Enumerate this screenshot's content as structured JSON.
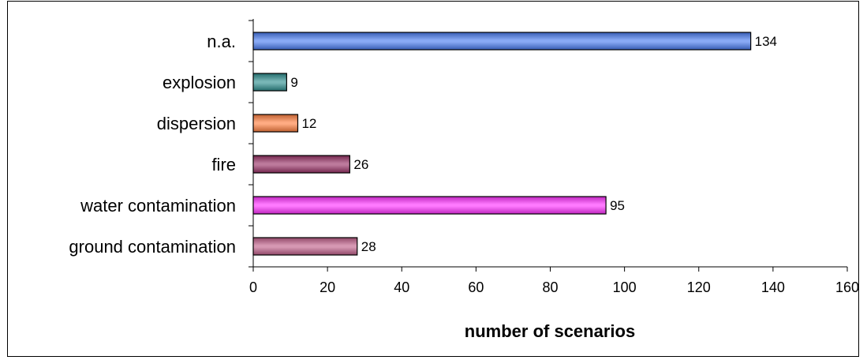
{
  "chart_data": {
    "type": "bar",
    "orientation": "horizontal",
    "categories": [
      "ground contamination",
      "water contamination",
      "fire",
      "dispersion",
      "explosion",
      "n.a."
    ],
    "values": [
      28,
      95,
      26,
      12,
      9,
      134
    ],
    "colors": [
      "#c0608a",
      "#ff33ff",
      "#993366",
      "#ff8040",
      "#2f8f8f",
      "#4a7cf0"
    ],
    "xlabel": "number of scenarios",
    "ylabel": "",
    "xlim": [
      0,
      160
    ],
    "xticks": [
      0,
      20,
      40,
      60,
      80,
      100,
      120,
      140,
      160
    ],
    "grid": false,
    "legend": "none"
  }
}
